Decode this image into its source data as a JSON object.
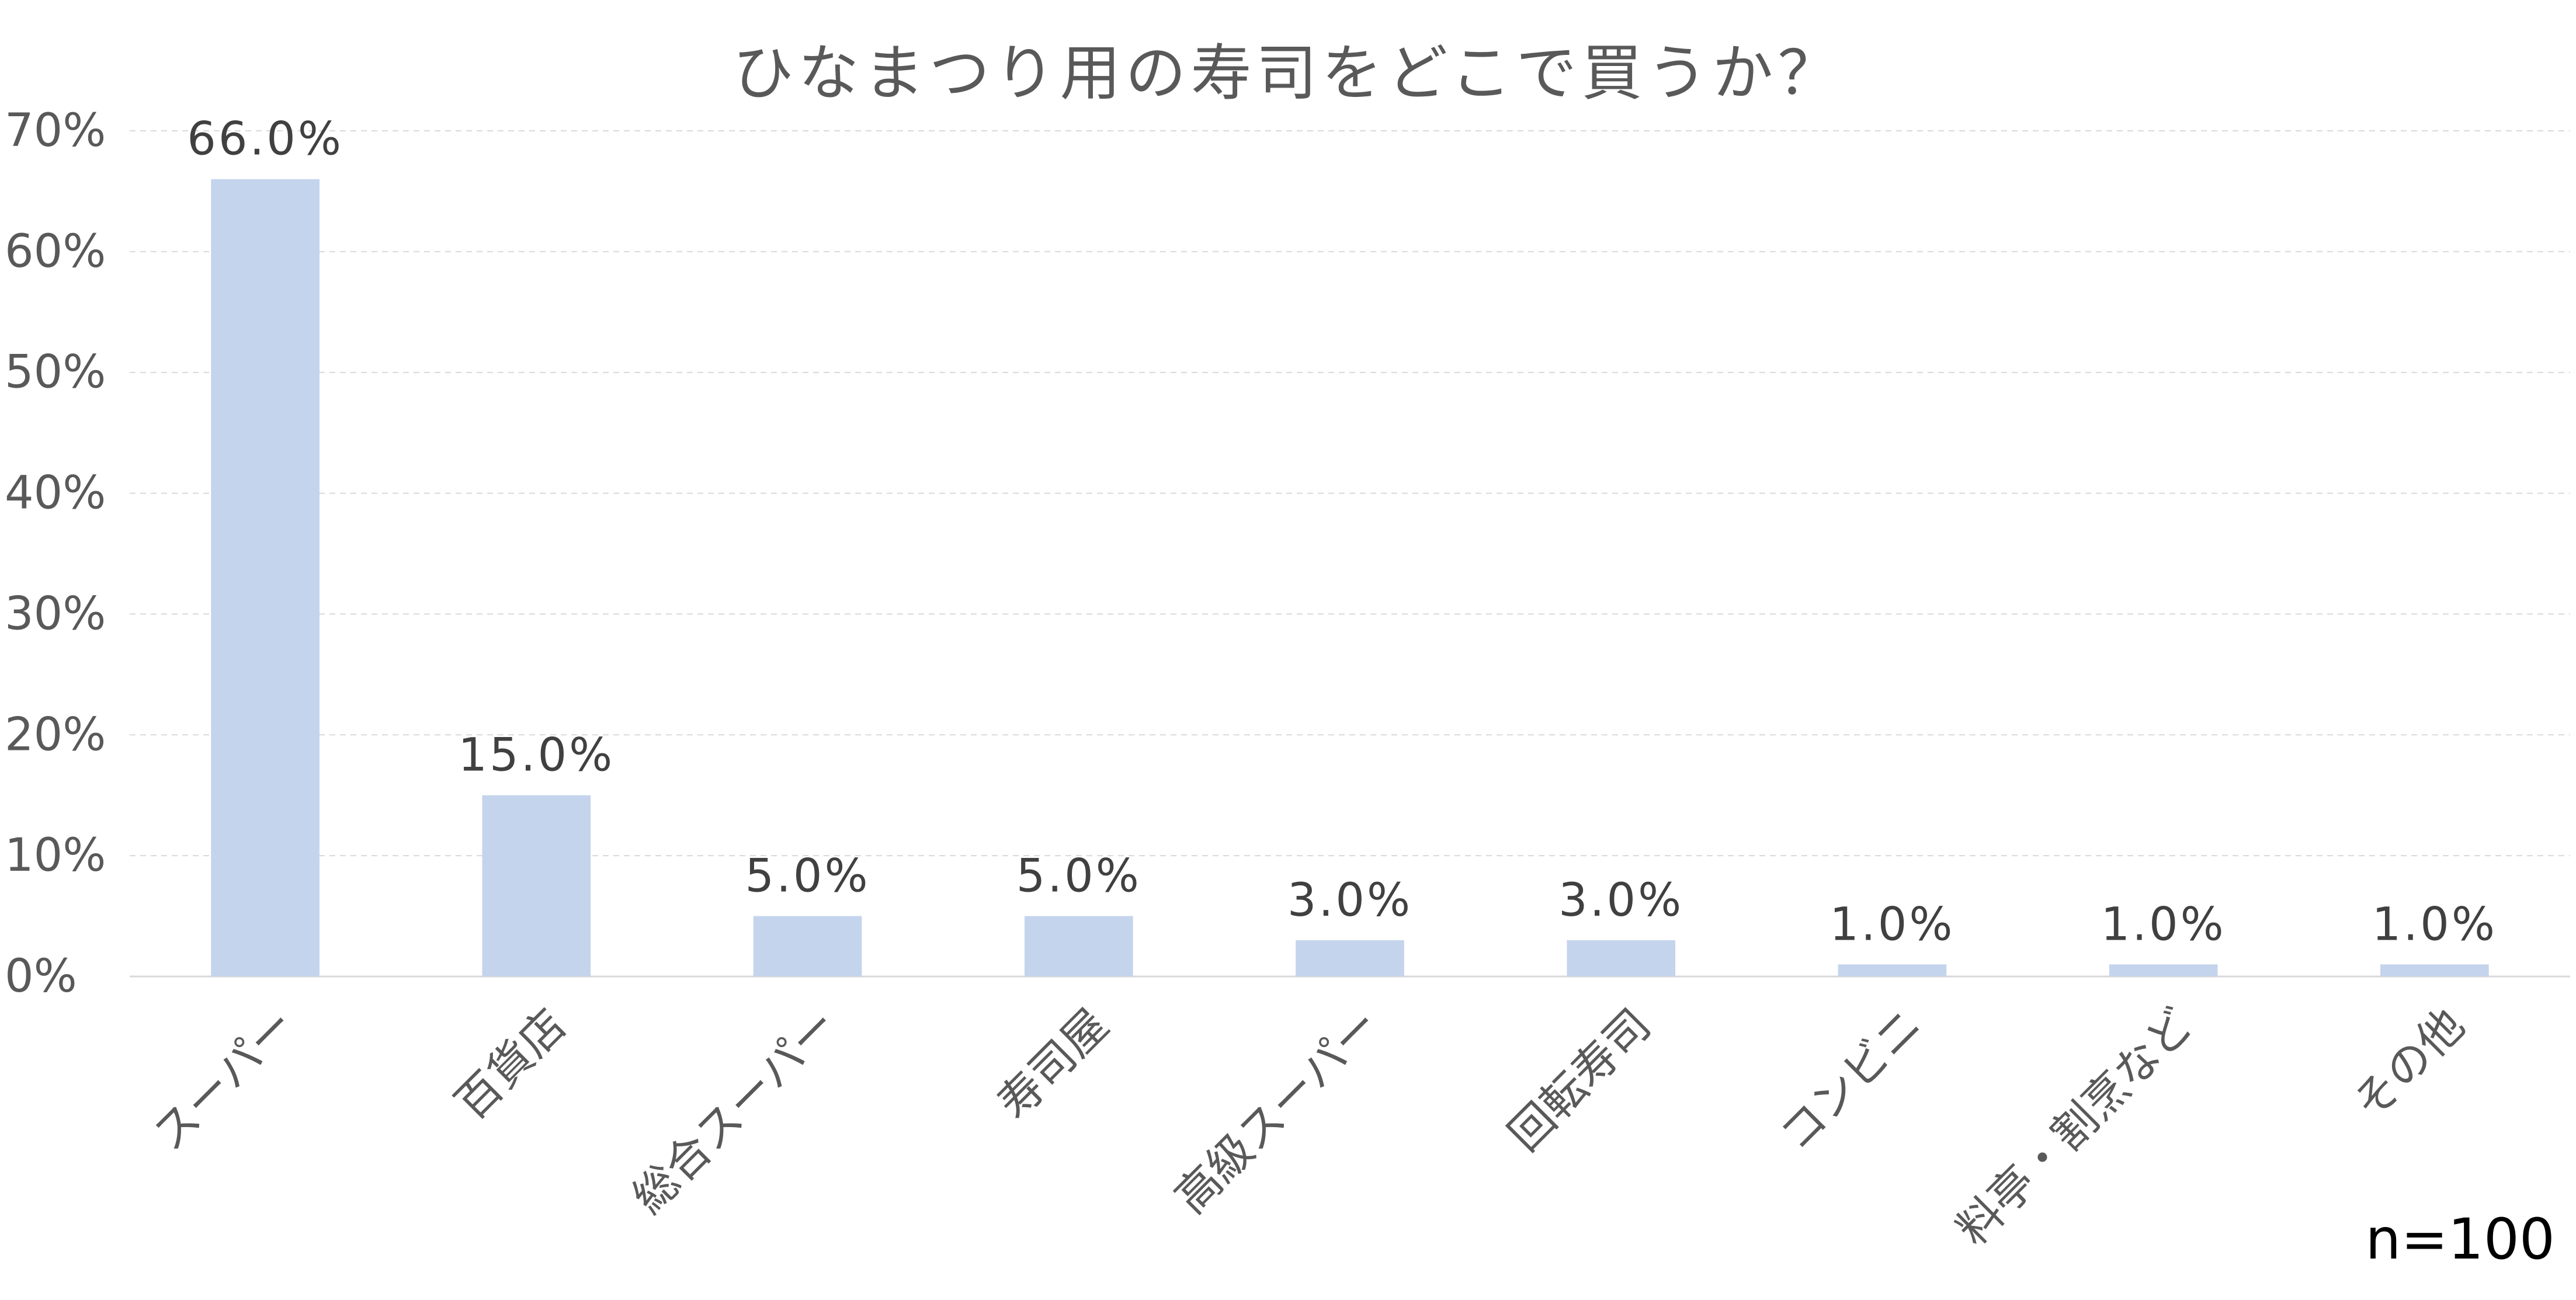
{
  "chart_data": {
    "type": "bar",
    "title": "ひなまつり用の寿司をどこで買うか？",
    "categories": [
      "スーパー",
      "百貨店",
      "総合スーパー",
      "寿司屋",
      "高級スーパー",
      "回転寿司",
      "コンビニ",
      "料亭・割烹など",
      "その他"
    ],
    "values": [
      66.0,
      15.0,
      5.0,
      5.0,
      3.0,
      3.0,
      1.0,
      1.0,
      1.0
    ],
    "data_labels": [
      "66.0%",
      "15.0%",
      "5.0%",
      "5.0%",
      "3.0%",
      "3.0%",
      "1.0%",
      "1.0%",
      "1.0%"
    ],
    "y_ticks": [
      0,
      10,
      20,
      30,
      40,
      50,
      60,
      70
    ],
    "y_tick_labels": [
      "0%",
      "10%",
      "20%",
      "30%",
      "40%",
      "50%",
      "60%",
      "70%"
    ],
    "ylim": [
      0,
      70
    ],
    "xlabel": "",
    "ylabel": "",
    "grid": true,
    "bar_color": "#c5d4ed",
    "gridline_color": "#d9d9d9"
  },
  "note": "n=100"
}
